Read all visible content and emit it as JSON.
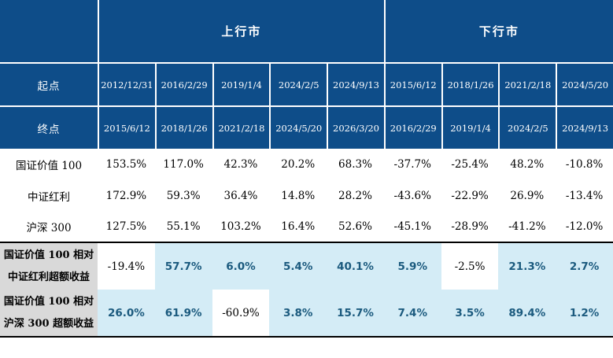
{
  "colors": {
    "header_blue": "#0e4d89",
    "grid_line_white": "#ffffff",
    "highlight_light_blue": "#d4ecf6",
    "highlight_text_blue": "#1b5a7e",
    "label_gray": "#d9d9d9",
    "section_divider_black": "#000000",
    "body_text_black": "#000000"
  },
  "chart_data": {
    "type": "table",
    "column_groups": [
      {
        "label": "上行市",
        "span": 5
      },
      {
        "label": "下行市",
        "span": 4
      }
    ],
    "start_row": {
      "label": "起点",
      "dates": [
        "2012/12/31",
        "2016/2/29",
        "2019/1/4",
        "2024/2/5",
        "2024/9/13",
        "2015/6/12",
        "2018/1/26",
        "2021/2/18",
        "2024/5/20"
      ]
    },
    "end_row": {
      "label": "终点",
      "dates": [
        "2015/6/12",
        "2018/1/26",
        "2021/2/18",
        "2024/5/20",
        "2026/3/20",
        "2016/2/29",
        "2019/1/4",
        "2024/2/5",
        "2024/9/13"
      ]
    },
    "index_return_rows": [
      {
        "label": "国证价值 100",
        "values": [
          "153.5%",
          "117.0%",
          "42.3%",
          "20.2%",
          "68.3%",
          "-37.7%",
          "-25.4%",
          "48.2%",
          "-10.8%"
        ]
      },
      {
        "label": "中证红利",
        "values": [
          "172.9%",
          "59.3%",
          "36.4%",
          "14.8%",
          "28.2%",
          "-43.6%",
          "-22.9%",
          "26.9%",
          "-13.4%"
        ]
      },
      {
        "label": "沪深 300",
        "values": [
          "127.5%",
          "55.1%",
          "103.2%",
          "16.4%",
          "52.6%",
          "-45.1%",
          "-28.9%",
          "-41.2%",
          "-12.0%"
        ]
      }
    ],
    "excess_return_rows": [
      {
        "label_line1": "国证价值 100 相对",
        "label_line2": "中证红利超额收益",
        "values": [
          "-19.4%",
          "57.7%",
          "6.0%",
          "5.4%",
          "40.1%",
          "5.9%",
          "-2.5%",
          "21.3%",
          "2.7%"
        ]
      },
      {
        "label_line1": "国证价值 100 相对",
        "label_line2": "沪深 300 超额收益",
        "values": [
          "26.0%",
          "61.9%",
          "-60.9%",
          "3.8%",
          "15.7%",
          "7.4%",
          "3.5%",
          "89.4%",
          "1.2%"
        ]
      }
    ]
  }
}
